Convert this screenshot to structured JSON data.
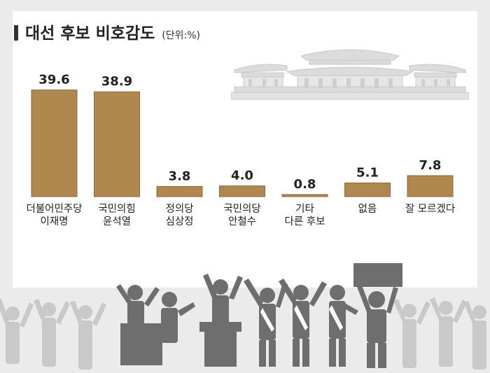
{
  "header": {
    "title": "대선 후보 비호감도",
    "unit": "(단위:%)"
  },
  "colors": {
    "bar": "#b0874f",
    "bar_stroke": "#8c6a3a",
    "background": "#ebebeb",
    "panel": "#ffffff",
    "silhouette_dark": "#6e6e6e",
    "silhouette_light": "#c9c9c9"
  },
  "chart_data": {
    "type": "bar",
    "title": "대선 후보 비호감도",
    "unit": "(단위:%)",
    "categories": [
      [
        "더불어민주당",
        "이재명"
      ],
      [
        "국민의힘",
        "윤석열"
      ],
      [
        "정의당",
        "심상정"
      ],
      [
        "국민의당",
        "안철수"
      ],
      [
        "기타",
        "다른 후보"
      ],
      [
        "없음"
      ],
      [
        "잘 모르겠다"
      ]
    ],
    "values": [
      39.6,
      38.9,
      3.8,
      4.0,
      0.8,
      5.1,
      7.8
    ],
    "value_labels": [
      "39.6",
      "38.9",
      "3.8",
      "4.0",
      "0.8",
      "5.1",
      "7.8"
    ],
    "ylim": [
      0,
      40
    ],
    "grid": false,
    "legend": "none"
  }
}
